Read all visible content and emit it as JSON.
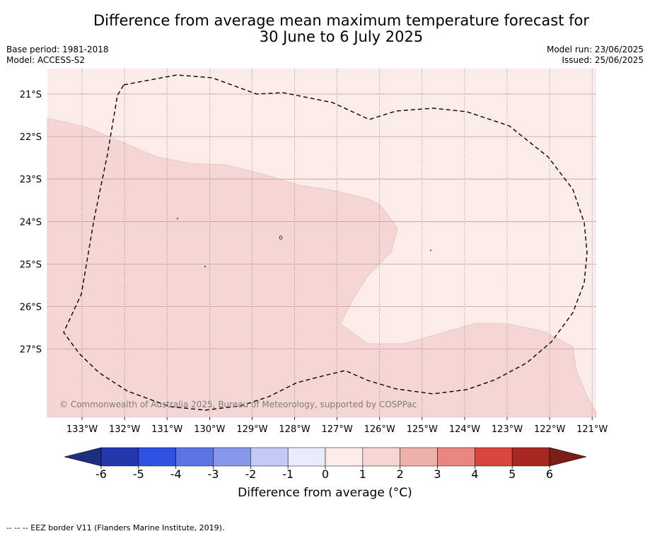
{
  "title_line1": "Difference from average mean maximum temperature forecast for",
  "title_line2": "30 June to 6 July 2025",
  "base_period": "Base period: 1981-2018",
  "model": "Model: ACCESS-S2",
  "model_run": "Model run: 23/06/2025",
  "issued": "Issued: 25/06/2025",
  "copyright": "© Commonwealth of Australia 2025, Bureau of Meteorology, supported by COSPPac",
  "map": {
    "lon_range": [
      -133.8,
      -120.9
    ],
    "lat_range": [
      -28.6,
      -20.4
    ],
    "lon_ticks": [
      "133°W",
      "132°W",
      "131°W",
      "130°W",
      "129°W",
      "128°W",
      "127°W",
      "126°W",
      "125°W",
      "124°W",
      "123°W",
      "122°W",
      "121°W"
    ],
    "lat_ticks": [
      "21°S",
      "22°S",
      "23°S",
      "24°S",
      "25°S",
      "26°S",
      "27°S"
    ],
    "anomaly_classes": [
      {
        "range": "0 to 1",
        "color": "#fbecea"
      },
      {
        "range": "1 to 2",
        "color": "#f5d6d4"
      }
    ],
    "eez_border_style": "dashed"
  },
  "colorbar": {
    "label": "Difference from average (°C)",
    "ticks": [
      "-6",
      "-5",
      "-4",
      "-3",
      "-2",
      "-1",
      "0",
      "1",
      "2",
      "3",
      "4",
      "5",
      "6"
    ],
    "colors": [
      "#2339aa",
      "#2f52e0",
      "#5b74e6",
      "#8797ec",
      "#c3caf5",
      "#e9ecfb",
      "#fbecea",
      "#f5d6d4",
      "#edb0aa",
      "#e8867f",
      "#d9463d",
      "#a72820"
    ],
    "under_color": "#1b2e80",
    "over_color": "#7a1e16"
  },
  "eez_note": "--  --  -- EEZ border V11 (Flanders Marine Institute, 2019)."
}
